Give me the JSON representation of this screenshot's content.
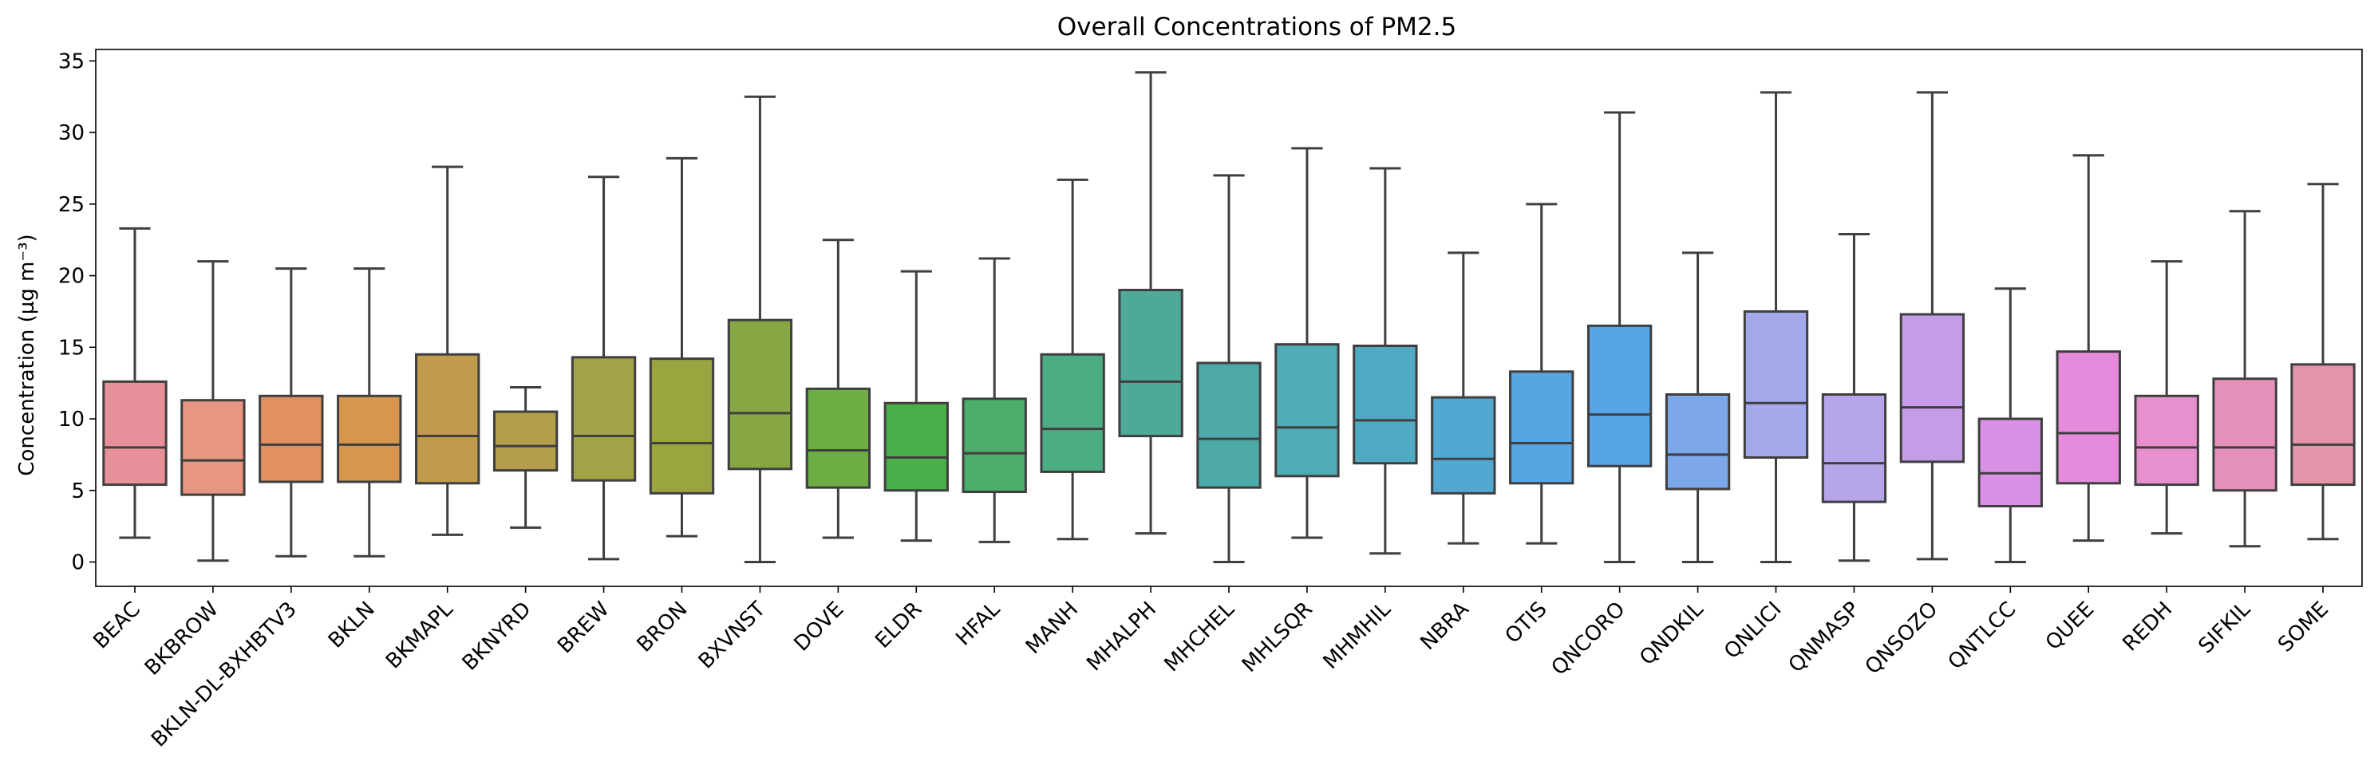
{
  "chart_data": {
    "type": "box",
    "title": "Overall Concentrations of PM2.5",
    "xlabel": "",
    "ylabel": "Concentration (µg m⁻³)",
    "ylim": [
      -1.7,
      35.8
    ],
    "yticks": [
      0,
      5,
      10,
      15,
      20,
      25,
      30,
      35
    ],
    "grid": false,
    "categories": [
      "BEAC",
      "BKBROW",
      "BKLN-DL-BXHBTV3",
      "BKLN",
      "BKMAPL",
      "BKNYRD",
      "BREW",
      "BRON",
      "BXVNST",
      "DOVE",
      "ELDR",
      "HFAL",
      "MANH",
      "MHALPH",
      "MHCHEL",
      "MHLSQR",
      "MHMHIL",
      "NBRA",
      "OTIS",
      "QNCORO",
      "QNDKIL",
      "QNLICI",
      "QNMASP",
      "QNSOZO",
      "QNTLCC",
      "QUEE",
      "REDH",
      "SIFKIL",
      "SOME"
    ],
    "series": [
      {
        "min": 1.7,
        "q1": 5.4,
        "median": 8.0,
        "q3": 12.6,
        "max": 23.3,
        "color": "#e8909a"
      },
      {
        "min": 0.1,
        "q1": 4.7,
        "median": 7.1,
        "q3": 11.3,
        "max": 21.0,
        "color": "#e69683"
      },
      {
        "min": 0.4,
        "q1": 5.6,
        "median": 8.2,
        "q3": 11.6,
        "max": 20.5,
        "color": "#e1915f"
      },
      {
        "min": 0.4,
        "q1": 5.6,
        "median": 8.2,
        "q3": 11.6,
        "max": 20.5,
        "color": "#d6964d"
      },
      {
        "min": 1.9,
        "q1": 5.5,
        "median": 8.8,
        "q3": 14.5,
        "max": 27.6,
        "color": "#c29a4c"
      },
      {
        "min": 2.4,
        "q1": 6.4,
        "median": 8.1,
        "q3": 10.5,
        "max": 12.2,
        "color": "#b39f4b"
      },
      {
        "min": 0.2,
        "q1": 5.7,
        "median": 8.8,
        "q3": 14.3,
        "max": 26.9,
        "color": "#a4a246"
      },
      {
        "min": 1.8,
        "q1": 4.8,
        "median": 8.3,
        "q3": 14.2,
        "max": 28.2,
        "color": "#9ba53f"
      },
      {
        "min": 0.0,
        "q1": 6.5,
        "median": 10.4,
        "q3": 16.9,
        "max": 32.5,
        "color": "#86a744"
      },
      {
        "min": 1.7,
        "q1": 5.2,
        "median": 7.8,
        "q3": 12.1,
        "max": 22.5,
        "color": "#6cad44"
      },
      {
        "min": 1.5,
        "q1": 5.0,
        "median": 7.3,
        "q3": 11.1,
        "max": 20.3,
        "color": "#49b049"
      },
      {
        "min": 1.4,
        "q1": 4.9,
        "median": 7.6,
        "q3": 11.4,
        "max": 21.2,
        "color": "#4dae6b"
      },
      {
        "min": 1.6,
        "q1": 6.3,
        "median": 9.3,
        "q3": 14.5,
        "max": 26.7,
        "color": "#4eac83"
      },
      {
        "min": 2.0,
        "q1": 8.8,
        "median": 12.6,
        "q3": 19.0,
        "max": 34.2,
        "color": "#4ea998"
      },
      {
        "min": 0.0,
        "q1": 5.2,
        "median": 8.6,
        "q3": 13.9,
        "max": 27.0,
        "color": "#4eaaa8"
      },
      {
        "min": 1.7,
        "q1": 6.0,
        "median": 9.4,
        "q3": 15.2,
        "max": 28.9,
        "color": "#4fabb6"
      },
      {
        "min": 0.6,
        "q1": 6.9,
        "median": 9.9,
        "q3": 15.1,
        "max": 27.5,
        "color": "#50aac4"
      },
      {
        "min": 1.3,
        "q1": 4.8,
        "median": 7.2,
        "q3": 11.5,
        "max": 21.6,
        "color": "#51a8d3"
      },
      {
        "min": 1.3,
        "q1": 5.5,
        "median": 8.3,
        "q3": 13.3,
        "max": 25.0,
        "color": "#57a6e1"
      },
      {
        "min": 0.0,
        "q1": 6.7,
        "median": 10.3,
        "q3": 16.5,
        "max": 31.4,
        "color": "#56a5e6"
      },
      {
        "min": 0.0,
        "q1": 5.1,
        "median": 7.5,
        "q3": 11.7,
        "max": 21.6,
        "color": "#7ca7e8"
      },
      {
        "min": 0.0,
        "q1": 7.3,
        "median": 11.1,
        "q3": 17.5,
        "max": 32.8,
        "color": "#a3a9ea"
      },
      {
        "min": 0.1,
        "q1": 4.2,
        "median": 6.9,
        "q3": 11.7,
        "max": 22.9,
        "color": "#b6a5e8"
      },
      {
        "min": 0.2,
        "q1": 7.0,
        "median": 10.8,
        "q3": 17.3,
        "max": 32.8,
        "color": "#c59de7"
      },
      {
        "min": 0.0,
        "q1": 3.9,
        "median": 6.2,
        "q3": 10.0,
        "max": 19.1,
        "color": "#d891e4"
      },
      {
        "min": 1.5,
        "q1": 5.5,
        "median": 9.0,
        "q3": 14.7,
        "max": 28.4,
        "color": "#e68adb"
      },
      {
        "min": 2.0,
        "q1": 5.4,
        "median": 8.0,
        "q3": 11.6,
        "max": 21.0,
        "color": "#e690cd"
      },
      {
        "min": 1.1,
        "q1": 5.0,
        "median": 8.0,
        "q3": 12.8,
        "max": 24.5,
        "color": "#e691bc"
      },
      {
        "min": 1.6,
        "q1": 5.4,
        "median": 8.2,
        "q3": 13.8,
        "max": 26.4,
        "color": "#e694aa"
      }
    ]
  }
}
